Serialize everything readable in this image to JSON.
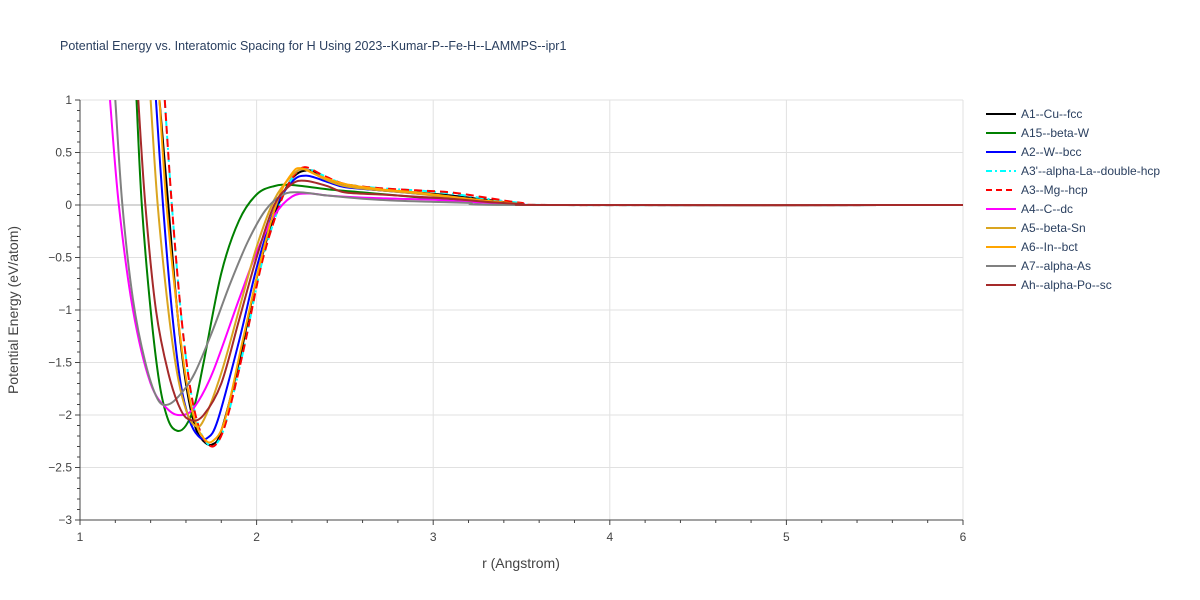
{
  "chart_data": {
    "type": "line",
    "title": "Potential Energy vs. Interatomic Spacing for H Using 2023--Kumar-P--Fe-H--LAMMPS--ipr1",
    "xlabel": "r (Angstrom)",
    "ylabel": "Potential Energy (eV/atom)",
    "xlim": [
      1,
      6
    ],
    "ylim": [
      -3,
      1
    ],
    "x_ticks": [
      1,
      2,
      3,
      4,
      5,
      6
    ],
    "x_tick_labels": [
      "1",
      "2",
      "3",
      "4",
      "5",
      "6"
    ],
    "y_ticks": [
      -3,
      -2.5,
      -2,
      -1.5,
      -1,
      -0.5,
      0,
      0.5,
      1
    ],
    "y_tick_labels": [
      "−3",
      "−2.5",
      "−2",
      "−1.5",
      "−1",
      "−0.5",
      "0",
      "0.5",
      "1"
    ],
    "grid": true,
    "legend_position": "right",
    "series": [
      {
        "name": "A1--Cu--fcc",
        "color": "#000000",
        "dash": "solid",
        "points": [
          [
            1.45,
            1.0
          ],
          [
            1.5,
            0.0
          ],
          [
            1.55,
            -1.0
          ],
          [
            1.6,
            -1.7
          ],
          [
            1.65,
            -2.1
          ],
          [
            1.7,
            -2.25
          ],
          [
            1.75,
            -2.28
          ],
          [
            1.8,
            -2.15
          ],
          [
            1.9,
            -1.5
          ],
          [
            2.0,
            -0.7
          ],
          [
            2.1,
            -0.1
          ],
          [
            2.2,
            0.25
          ],
          [
            2.3,
            0.33
          ],
          [
            2.4,
            0.24
          ],
          [
            2.5,
            0.18
          ],
          [
            2.7,
            0.14
          ],
          [
            2.9,
            0.12
          ],
          [
            3.1,
            0.09
          ],
          [
            3.3,
            0.05
          ],
          [
            3.5,
            0.01
          ],
          [
            3.7,
            0.0
          ],
          [
            6.0,
            0.0
          ]
        ]
      },
      {
        "name": "A15--beta-W",
        "color": "#008000",
        "dash": "solid",
        "points": [
          [
            1.32,
            1.0
          ],
          [
            1.35,
            0.0
          ],
          [
            1.4,
            -1.0
          ],
          [
            1.45,
            -1.7
          ],
          [
            1.5,
            -2.05
          ],
          [
            1.55,
            -2.15
          ],
          [
            1.6,
            -2.1
          ],
          [
            1.65,
            -1.9
          ],
          [
            1.7,
            -1.5
          ],
          [
            1.8,
            -0.65
          ],
          [
            1.9,
            -0.15
          ],
          [
            2.0,
            0.1
          ],
          [
            2.1,
            0.18
          ],
          [
            2.2,
            0.19
          ],
          [
            2.4,
            0.15
          ],
          [
            2.6,
            0.12
          ],
          [
            2.8,
            0.09
          ],
          [
            3.0,
            0.06
          ],
          [
            3.2,
            0.03
          ],
          [
            3.5,
            0.01
          ],
          [
            3.7,
            0.0
          ],
          [
            6.0,
            0.0
          ]
        ]
      },
      {
        "name": "A2--W--bcc",
        "color": "#0000ff",
        "dash": "solid",
        "points": [
          [
            1.43,
            1.0
          ],
          [
            1.47,
            0.0
          ],
          [
            1.52,
            -1.0
          ],
          [
            1.57,
            -1.7
          ],
          [
            1.62,
            -2.05
          ],
          [
            1.67,
            -2.2
          ],
          [
            1.72,
            -2.22
          ],
          [
            1.78,
            -2.05
          ],
          [
            1.9,
            -1.3
          ],
          [
            2.0,
            -0.6
          ],
          [
            2.1,
            -0.05
          ],
          [
            2.2,
            0.22
          ],
          [
            2.28,
            0.28
          ],
          [
            2.4,
            0.22
          ],
          [
            2.5,
            0.17
          ],
          [
            2.7,
            0.14
          ],
          [
            2.9,
            0.11
          ],
          [
            3.1,
            0.08
          ],
          [
            3.3,
            0.04
          ],
          [
            3.5,
            0.01
          ],
          [
            3.7,
            0.0
          ],
          [
            6.0,
            0.0
          ]
        ]
      },
      {
        "name": "A3'--alpha-La--double-hcp",
        "color": "#00ffff",
        "dash": "dashdot",
        "points": [
          [
            1.48,
            1.0
          ],
          [
            1.52,
            0.0
          ],
          [
            1.57,
            -1.0
          ],
          [
            1.62,
            -1.7
          ],
          [
            1.67,
            -2.1
          ],
          [
            1.72,
            -2.27
          ],
          [
            1.77,
            -2.28
          ],
          [
            1.83,
            -2.05
          ],
          [
            1.93,
            -1.35
          ],
          [
            2.03,
            -0.55
          ],
          [
            2.13,
            0.0
          ],
          [
            2.2,
            0.25
          ],
          [
            2.27,
            0.35
          ],
          [
            2.38,
            0.28
          ],
          [
            2.5,
            0.2
          ],
          [
            2.7,
            0.16
          ],
          [
            2.9,
            0.14
          ],
          [
            3.1,
            0.11
          ],
          [
            3.3,
            0.06
          ],
          [
            3.5,
            0.02
          ],
          [
            3.7,
            0.0
          ],
          [
            6.0,
            0.0
          ]
        ]
      },
      {
        "name": "A3--Mg--hcp",
        "color": "#ff0000",
        "dash": "dash",
        "points": [
          [
            1.48,
            1.0
          ],
          [
            1.52,
            0.0
          ],
          [
            1.57,
            -1.0
          ],
          [
            1.62,
            -1.7
          ],
          [
            1.67,
            -2.1
          ],
          [
            1.72,
            -2.27
          ],
          [
            1.77,
            -2.28
          ],
          [
            1.83,
            -2.05
          ],
          [
            1.93,
            -1.35
          ],
          [
            2.03,
            -0.55
          ],
          [
            2.13,
            0.0
          ],
          [
            2.2,
            0.25
          ],
          [
            2.27,
            0.36
          ],
          [
            2.38,
            0.28
          ],
          [
            2.5,
            0.2
          ],
          [
            2.7,
            0.16
          ],
          [
            2.9,
            0.14
          ],
          [
            3.1,
            0.12
          ],
          [
            3.3,
            0.07
          ],
          [
            3.5,
            0.02
          ],
          [
            3.7,
            0.0
          ],
          [
            6.0,
            0.0
          ]
        ]
      },
      {
        "name": "A4--C--dc",
        "color": "#ff00ff",
        "dash": "solid",
        "points": [
          [
            1.17,
            1.0
          ],
          [
            1.22,
            0.0
          ],
          [
            1.3,
            -1.0
          ],
          [
            1.4,
            -1.7
          ],
          [
            1.5,
            -1.95
          ],
          [
            1.58,
            -2.0
          ],
          [
            1.65,
            -1.92
          ],
          [
            1.75,
            -1.6
          ],
          [
            1.9,
            -0.9
          ],
          [
            2.0,
            -0.45
          ],
          [
            2.1,
            -0.1
          ],
          [
            2.2,
            0.08
          ],
          [
            2.3,
            0.11
          ],
          [
            2.4,
            0.09
          ],
          [
            2.6,
            0.07
          ],
          [
            2.8,
            0.06
          ],
          [
            3.0,
            0.05
          ],
          [
            3.2,
            0.03
          ],
          [
            3.5,
            0.01
          ],
          [
            3.7,
            0.0
          ],
          [
            6.0,
            0.0
          ]
        ]
      },
      {
        "name": "A5--beta-Sn",
        "color": "#daa520",
        "dash": "solid",
        "points": [
          [
            1.4,
            1.0
          ],
          [
            1.44,
            0.0
          ],
          [
            1.5,
            -1.0
          ],
          [
            1.55,
            -1.6
          ],
          [
            1.6,
            -1.95
          ],
          [
            1.65,
            -2.1
          ],
          [
            1.7,
            -2.05
          ],
          [
            1.8,
            -1.6
          ],
          [
            1.9,
            -1.0
          ],
          [
            2.0,
            -0.4
          ],
          [
            2.1,
            0.05
          ],
          [
            2.2,
            0.28
          ],
          [
            2.27,
            0.34
          ],
          [
            2.38,
            0.25
          ],
          [
            2.5,
            0.18
          ],
          [
            2.7,
            0.14
          ],
          [
            2.9,
            0.11
          ],
          [
            3.1,
            0.07
          ],
          [
            3.3,
            0.04
          ],
          [
            3.5,
            0.01
          ],
          [
            3.7,
            0.0
          ],
          [
            6.0,
            0.0
          ]
        ]
      },
      {
        "name": "A6--In--bct",
        "color": "#ffa500",
        "dash": "solid",
        "points": [
          [
            1.45,
            1.0
          ],
          [
            1.49,
            0.0
          ],
          [
            1.55,
            -1.0
          ],
          [
            1.6,
            -1.65
          ],
          [
            1.65,
            -2.05
          ],
          [
            1.7,
            -2.22
          ],
          [
            1.75,
            -2.25
          ],
          [
            1.82,
            -2.05
          ],
          [
            1.92,
            -1.3
          ],
          [
            2.02,
            -0.55
          ],
          [
            2.12,
            0.05
          ],
          [
            2.2,
            0.3
          ],
          [
            2.25,
            0.35
          ],
          [
            2.35,
            0.28
          ],
          [
            2.5,
            0.2
          ],
          [
            2.7,
            0.15
          ],
          [
            2.9,
            0.12
          ],
          [
            3.1,
            0.08
          ],
          [
            3.3,
            0.04
          ],
          [
            3.5,
            0.01
          ],
          [
            3.7,
            0.0
          ],
          [
            6.0,
            0.0
          ]
        ]
      },
      {
        "name": "A7--alpha-As",
        "color": "#808080",
        "dash": "solid",
        "points": [
          [
            1.2,
            1.0
          ],
          [
            1.24,
            0.0
          ],
          [
            1.3,
            -0.9
          ],
          [
            1.37,
            -1.5
          ],
          [
            1.44,
            -1.85
          ],
          [
            1.5,
            -1.9
          ],
          [
            1.57,
            -1.8
          ],
          [
            1.65,
            -1.6
          ],
          [
            1.75,
            -1.2
          ],
          [
            1.85,
            -0.75
          ],
          [
            1.95,
            -0.35
          ],
          [
            2.05,
            -0.05
          ],
          [
            2.15,
            0.1
          ],
          [
            2.25,
            0.12
          ],
          [
            2.4,
            0.09
          ],
          [
            2.6,
            0.06
          ],
          [
            2.8,
            0.04
          ],
          [
            3.0,
            0.03
          ],
          [
            3.2,
            0.02
          ],
          [
            3.5,
            0.0
          ],
          [
            6.0,
            0.0
          ]
        ]
      },
      {
        "name": "Ah--alpha-Po--sc",
        "color": "#a52a2a",
        "dash": "solid",
        "points": [
          [
            1.33,
            1.0
          ],
          [
            1.37,
            0.0
          ],
          [
            1.43,
            -1.0
          ],
          [
            1.5,
            -1.6
          ],
          [
            1.57,
            -1.95
          ],
          [
            1.63,
            -2.05
          ],
          [
            1.7,
            -2.0
          ],
          [
            1.8,
            -1.7
          ],
          [
            1.9,
            -1.1
          ],
          [
            2.0,
            -0.5
          ],
          [
            2.1,
            0.0
          ],
          [
            2.2,
            0.2
          ],
          [
            2.28,
            0.23
          ],
          [
            2.4,
            0.18
          ],
          [
            2.5,
            0.12
          ],
          [
            2.7,
            0.1
          ],
          [
            2.9,
            0.08
          ],
          [
            3.1,
            0.06
          ],
          [
            3.3,
            0.03
          ],
          [
            3.5,
            0.01
          ],
          [
            3.7,
            0.0
          ],
          [
            6.0,
            0.0
          ]
        ]
      }
    ]
  }
}
